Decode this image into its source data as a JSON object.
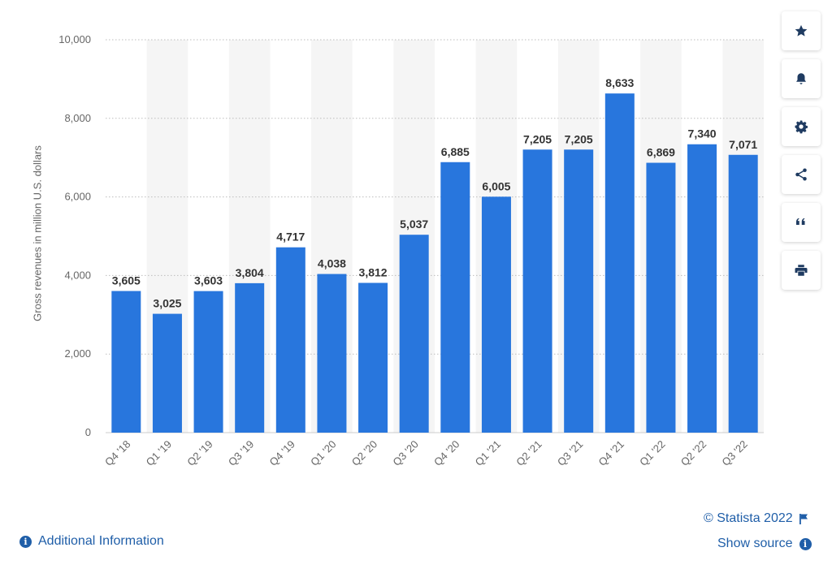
{
  "chart_data": {
    "type": "bar",
    "categories": [
      "Q4 '18",
      "Q1 '19",
      "Q2 '19",
      "Q3 '19",
      "Q4 '19",
      "Q1 '20",
      "Q2 '20",
      "Q3 '20",
      "Q4 '20",
      "Q1 '21",
      "Q2 '21",
      "Q3 '21",
      "Q4 '21",
      "Q1 '22",
      "Q2 '22",
      "Q3 '22"
    ],
    "values": [
      3605,
      3025,
      3603,
      3804,
      4717,
      4038,
      3812,
      5037,
      6885,
      6005,
      7205,
      7205,
      8633,
      6869,
      7340,
      7071
    ],
    "value_labels": [
      "3,605",
      "3,025",
      "3,603",
      "3,804",
      "4,717",
      "4,038",
      "3,812",
      "5,037",
      "6,885",
      "6,005",
      "7,205",
      "7,205",
      "8,633",
      "6,869",
      "7,340",
      "7,071"
    ],
    "ylabel": "Gross revenues in million U.S. dollars",
    "ylim": [
      0,
      10000
    ],
    "yticks": [
      0,
      2000,
      4000,
      6000,
      8000,
      10000
    ],
    "ytick_labels": [
      "0",
      "2,000",
      "4,000",
      "6,000",
      "8,000",
      "10,000"
    ],
    "grid": true,
    "bar_color": "#2876dd"
  },
  "toolbar": {
    "buttons": [
      {
        "name": "star-icon"
      },
      {
        "name": "bell-icon"
      },
      {
        "name": "gear-icon"
      },
      {
        "name": "share-icon"
      },
      {
        "name": "quote-icon"
      },
      {
        "name": "print-icon"
      }
    ]
  },
  "footer": {
    "additional_info": "Additional Information",
    "copyright": "© Statista 2022",
    "show_source": "Show source",
    "info_glyph": "i",
    "link_color": "#1f5ea8"
  }
}
